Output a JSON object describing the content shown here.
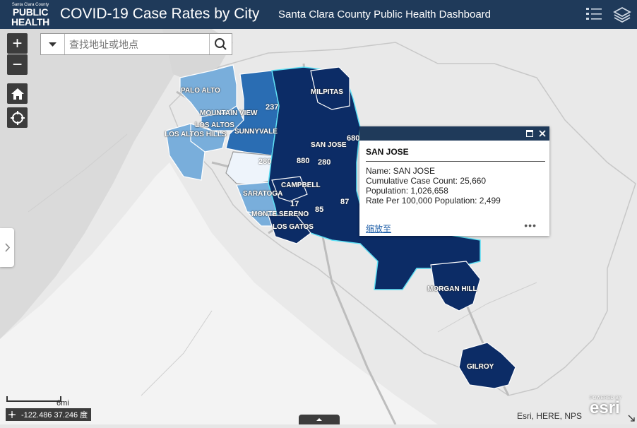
{
  "header": {
    "logo_top": "Santa Clara County",
    "logo_line1": "PUBLIC",
    "logo_line2": "HEALTH",
    "title": "COVID-19 Case Rates by City",
    "subtitle": "Santa Clara County Public Health Dashboard",
    "icons": [
      "legend-list-icon",
      "layers-icon"
    ]
  },
  "search": {
    "placeholder": "查找地址或地点"
  },
  "controls": {
    "zoom_in": "+",
    "zoom_out": "−",
    "icons": [
      "home-icon",
      "locate-icon",
      "search-icon",
      "chevron-down-icon"
    ]
  },
  "cities": [
    "PALO ALTO",
    "MOUNTAIN VIEW",
    "LOS ALTOS",
    "LOS ALTOS HILLS",
    "SUNNYVALE",
    "MILPITAS",
    "SAN JOSE",
    "CAMPBELL",
    "SARATOGA",
    "MONTE SERENO",
    "LOS GATOS",
    "MORGAN HILL",
    "GILROY"
  ],
  "highways": [
    "237",
    "680",
    "880",
    "280",
    "280",
    "85",
    "87",
    "17"
  ],
  "popup": {
    "title": "SAN JOSE",
    "fields": [
      "Name: SAN JOSE",
      "Cumulative Case Count: 25,660",
      "Population: 1,026,658",
      "Rate Per 100,000 Population: 2,499"
    ],
    "zoom_link": "缩放至",
    "more": "•••"
  },
  "coordinates": "-122.486 37.246 度",
  "scale_label": "6mi",
  "attribution": "Esri, HERE, NPS",
  "esri": {
    "powered": "POWERED BY",
    "brand": "esri"
  },
  "colors": {
    "header": "#1f3a5a",
    "highest": "#0c2c66",
    "high": "#2a6db3",
    "mid": "#4c8cc8",
    "low": "#79aedb",
    "lowest": "#eef4fb",
    "highlight": "#5ce0f5"
  }
}
